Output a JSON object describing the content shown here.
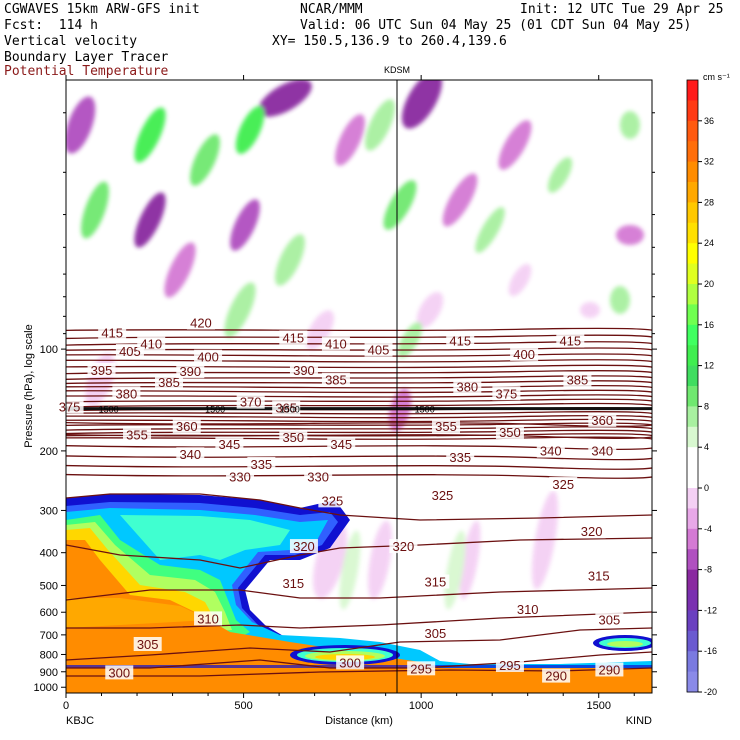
{
  "header": {
    "line1_left": "CGWAVES 15km ARW-GFS init",
    "line1_mid": "NCAR/MMM",
    "line1_right": "Init: 12 UTC Tue 29 Apr 25",
    "line2_left": "Fcst:  114 h",
    "line2_right": "Valid: 06 UTC Sun 04 May 25 (01 CDT Sun 04 May 25)",
    "line3_left": "Vertical velocity",
    "line3_right": "XY= 150.5,136.9 to 260.4,139.6",
    "line4_left": "Boundary Layer Tracer",
    "line5_left": "Potential Temperature"
  },
  "colors": {
    "theta_line": "#6b1010",
    "tracer_fill": [
      "#ff8c00",
      "#ffd700",
      "#b0ff60",
      "#40ff80",
      "#40ffd0",
      "#00c8ff",
      "#3060ff",
      "#1010d0"
    ]
  },
  "chart_data": {
    "type": "heatmap",
    "xlabel": "Distance (km)",
    "ylabel": "Pressure (hPa), log scale",
    "station_top": "KDSM",
    "station_left": "KBJC",
    "station_right": "KIND",
    "station_line_x": 940,
    "x_ticks": [
      0,
      500,
      1000,
      1500
    ],
    "xlim": [
      0,
      1650
    ],
    "y_ticks": [
      100,
      200,
      300,
      400,
      500,
      600,
      700,
      800,
      900,
      1000
    ],
    "ylim": [
      1040,
      16
    ],
    "ylog": true,
    "colorbar": {
      "unit": "cm s⁻¹",
      "labels": [
        36,
        32,
        28,
        24,
        20,
        16,
        12,
        8,
        4,
        0,
        -4,
        -8,
        -12,
        -16,
        -20
      ],
      "colors": [
        "#ff1a1a",
        "#ff3a14",
        "#ff5a10",
        "#ff6e0a",
        "#ff8c00",
        "#ffa800",
        "#ffc800",
        "#ffe000",
        "#ffff00",
        "#e0ff20",
        "#b0ff40",
        "#70ff50",
        "#40ff60",
        "#40ee50",
        "#40dd60",
        "#70e870",
        "#a8f0a0",
        "#d8f8d0",
        "#ffffff",
        "#ffffff",
        "#f4d0f4",
        "#e8a8e8",
        "#d47ad4",
        "#b050c0",
        "#8a2aa0",
        "#7a30b0",
        "#6a40c0",
        "#6a5ad0",
        "#7a7ae0",
        "#8a8ae8"
      ]
    },
    "theta_labels": [
      {
        "v": "415",
        "x": 130,
        "p": 90
      },
      {
        "v": "405",
        "x": 180,
        "p": 102
      },
      {
        "v": "410",
        "x": 240,
        "p": 97
      },
      {
        "v": "420",
        "x": 380,
        "p": 84
      },
      {
        "v": "415",
        "x": 640,
        "p": 93
      },
      {
        "v": "410",
        "x": 760,
        "p": 97
      },
      {
        "v": "405",
        "x": 880,
        "p": 101
      },
      {
        "v": "415",
        "x": 1110,
        "p": 95
      },
      {
        "v": "400",
        "x": 1290,
        "p": 104
      },
      {
        "v": "415",
        "x": 1420,
        "p": 95
      },
      {
        "v": "395",
        "x": 100,
        "p": 116
      },
      {
        "v": "380",
        "x": 170,
        "p": 136
      },
      {
        "v": "385",
        "x": 290,
        "p": 126
      },
      {
        "v": "390",
        "x": 350,
        "p": 117
      },
      {
        "v": "400",
        "x": 400,
        "p": 106
      },
      {
        "v": "390",
        "x": 670,
        "p": 116
      },
      {
        "v": "385",
        "x": 760,
        "p": 124
      },
      {
        "v": "380",
        "x": 1130,
        "p": 130
      },
      {
        "v": "375",
        "x": 1240,
        "p": 136
      },
      {
        "v": "385",
        "x": 1440,
        "p": 124
      },
      {
        "v": "375",
        "x": 10,
        "p": 149
      },
      {
        "v": "370",
        "x": 520,
        "p": 144
      },
      {
        "v": "365",
        "x": 620,
        "p": 150
      },
      {
        "v": "360",
        "x": 340,
        "p": 170
      },
      {
        "v": "355",
        "x": 200,
        "p": 180
      },
      {
        "v": "355",
        "x": 1070,
        "p": 170
      },
      {
        "v": "350",
        "x": 640,
        "p": 183
      },
      {
        "v": "350",
        "x": 1250,
        "p": 177
      },
      {
        "v": "360",
        "x": 1510,
        "p": 163
      },
      {
        "v": "345",
        "x": 460,
        "p": 192
      },
      {
        "v": "345",
        "x": 775,
        "p": 192
      },
      {
        "v": "340",
        "x": 350,
        "p": 206
      },
      {
        "v": "340",
        "x": 1365,
        "p": 201
      },
      {
        "v": "340",
        "x": 1510,
        "p": 201
      },
      {
        "v": "335",
        "x": 550,
        "p": 220
      },
      {
        "v": "335",
        "x": 1110,
        "p": 210
      },
      {
        "v": "330",
        "x": 490,
        "p": 240
      },
      {
        "v": "330",
        "x": 710,
        "p": 240
      },
      {
        "v": "325",
        "x": 1400,
        "p": 252
      },
      {
        "v": "325",
        "x": 1060,
        "p": 272
      },
      {
        "v": "325",
        "x": 750,
        "p": 282
      },
      {
        "v": "320",
        "x": 670,
        "p": 385
      },
      {
        "v": "320",
        "x": 950,
        "p": 385
      },
      {
        "v": "320",
        "x": 1480,
        "p": 348
      },
      {
        "v": "315",
        "x": 640,
        "p": 495
      },
      {
        "v": "315",
        "x": 1040,
        "p": 490
      },
      {
        "v": "315",
        "x": 1500,
        "p": 470
      },
      {
        "v": "310",
        "x": 400,
        "p": 630
      },
      {
        "v": "310",
        "x": 1300,
        "p": 590
      },
      {
        "v": "305",
        "x": 1530,
        "p": 635
      },
      {
        "v": "305",
        "x": 1040,
        "p": 695
      },
      {
        "v": "305",
        "x": 230,
        "p": 750
      },
      {
        "v": "300",
        "x": 800,
        "p": 850
      },
      {
        "v": "295",
        "x": 1000,
        "p": 885
      },
      {
        "v": "295",
        "x": 1250,
        "p": 865
      },
      {
        "v": "290",
        "x": 1530,
        "p": 892
      },
      {
        "v": "290",
        "x": 1380,
        "p": 930
      },
      {
        "v": "300",
        "x": 150,
        "p": 910
      }
    ],
    "tropopause_labels": [
      {
        "v": "1500",
        "x": 120,
        "p": 150
      },
      {
        "v": "1500",
        "x": 420,
        "p": 150
      },
      {
        "v": "1500",
        "x": 630,
        "p": 150
      },
      {
        "v": "1500",
        "x": 1010,
        "p": 150
      }
    ]
  }
}
